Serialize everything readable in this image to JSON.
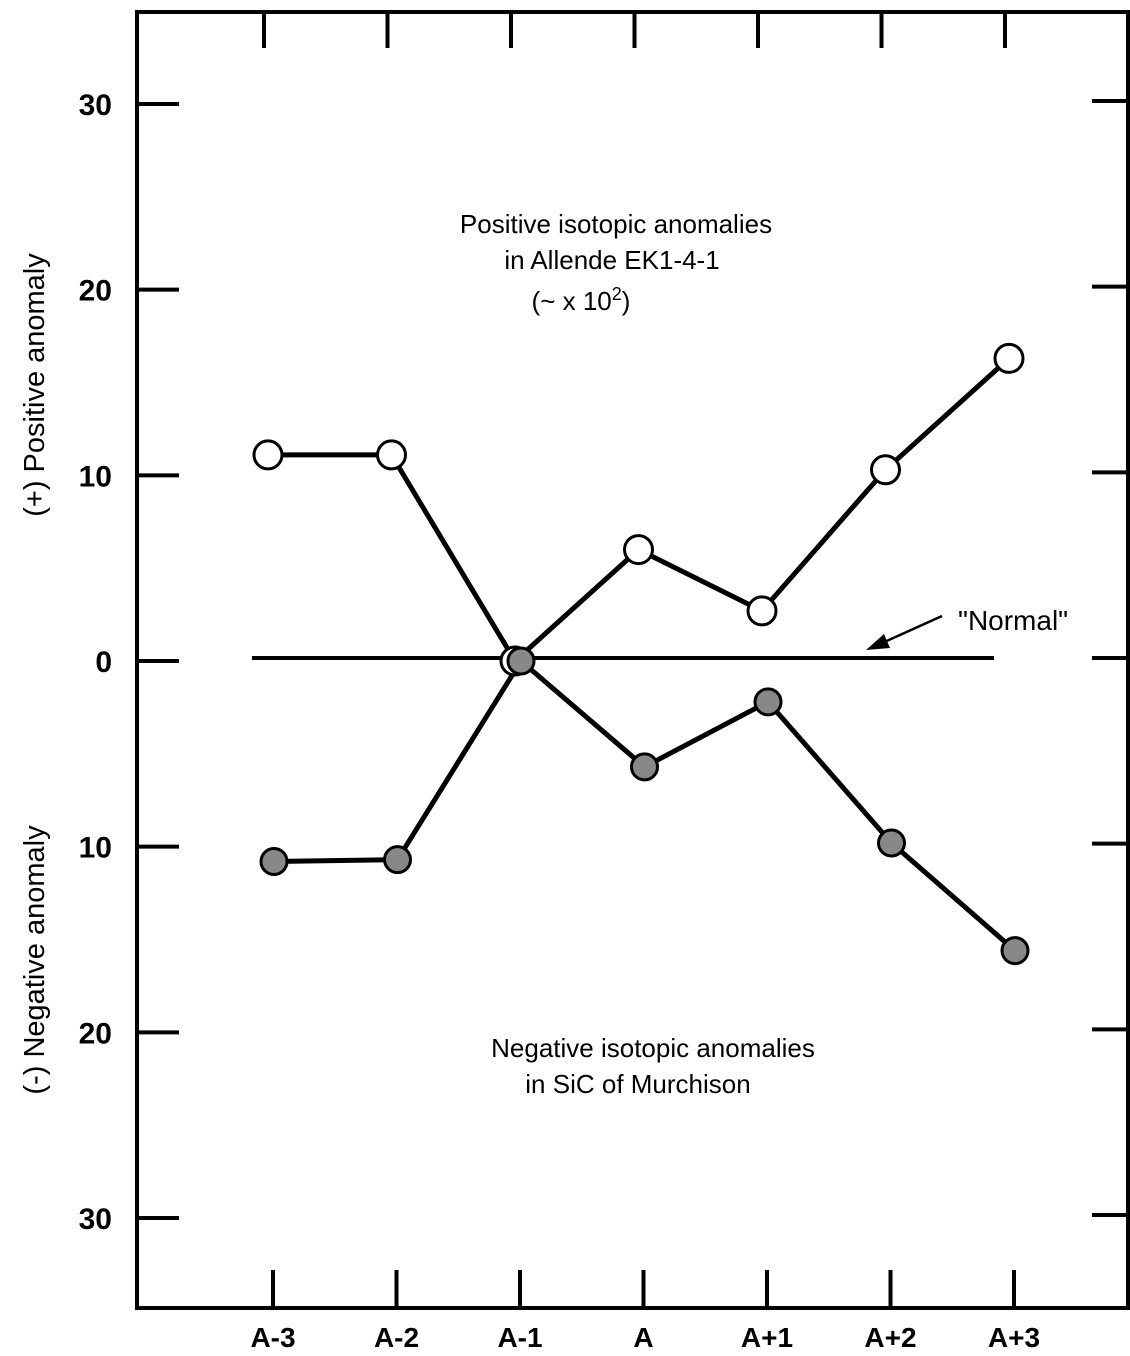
{
  "chart_data": {
    "type": "line",
    "categories": [
      "A-3",
      "A-2",
      "A-1",
      "A",
      "A+1",
      "A+2",
      "A+3"
    ],
    "y_tick_labels": [
      "30",
      "20",
      "10",
      "0",
      "10",
      "20",
      "30"
    ],
    "y_ticks": [
      30,
      20,
      10,
      0,
      -10,
      -20,
      -30
    ],
    "ylim": [
      -35,
      35
    ],
    "ylabel_positive": "(+) Positive anomaly",
    "ylabel_negative": "(-) Negative anomaly",
    "series": [
      {
        "values": [
          11.1,
          11.1,
          0,
          6,
          2.7,
          10.3,
          16.3
        ],
        "marker": "open-circle",
        "color": "#ffffff"
      },
      {
        "values": [
          -10.8,
          -10.7,
          0,
          -5.7,
          -2.2,
          -9.8,
          -15.6
        ],
        "marker": "filled-circle",
        "color": "#888888"
      }
    ],
    "normal_label": "\"Normal\"",
    "annotations": {
      "positive_title_line1": "Positive isotopic anomalies",
      "positive_title_line2": "in Allende EK1-4-1",
      "positive_scale_prefix": "(~ x 10",
      "positive_scale_exp": "2",
      "positive_scale_suffix": ")",
      "negative_title_line1": "Negative isotopic anomalies",
      "negative_title_line2": "in SiC of Murchison"
    },
    "grid": false,
    "legend": "none"
  }
}
